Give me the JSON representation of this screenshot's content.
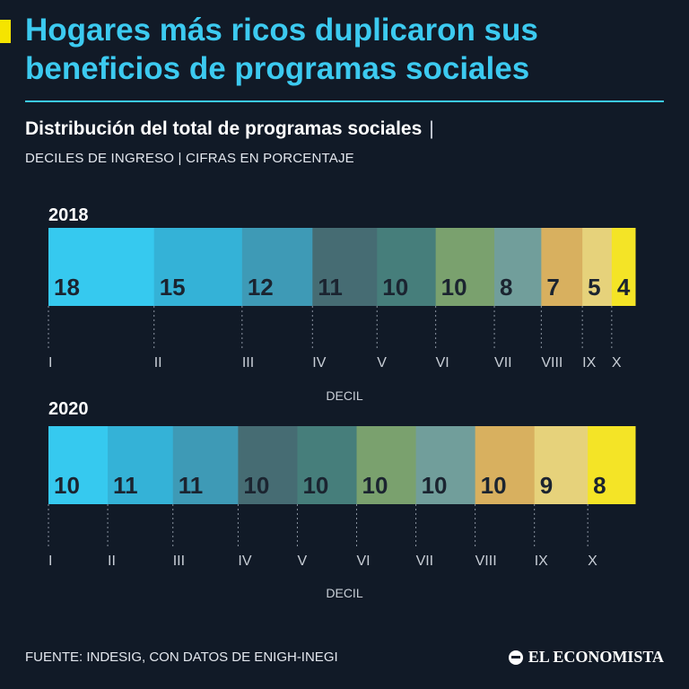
{
  "header": {
    "title": "Hogares más ricos duplicaron sus beneficios de programas sociales",
    "subtitle": "Distribución del total de programas sociales",
    "subtitle_separator": "|",
    "subtitle2": "DECILES DE INGRESO | CIFRAS EN PORCENTAJE"
  },
  "footer": {
    "source": "FUENTE: INDESIG, CON DATOS DE ENIGH-INEGI",
    "brand": "EL ECONOMISTA"
  },
  "colors": {
    "background": "#111a27",
    "accent": "#f5e400",
    "title": "#3ccaf0",
    "deciles": [
      "#36c9ef",
      "#34b2d7",
      "#3e9ab6",
      "#466c73",
      "#467e7b",
      "#7aa16e",
      "#719e9b",
      "#d8b05f",
      "#e6d27b",
      "#f4e426"
    ]
  },
  "chart_data": [
    {
      "type": "bar",
      "orientation": "horizontal-stacked",
      "title": "2018",
      "xlabel": "DECIL",
      "unit": "%",
      "categories": [
        "I",
        "II",
        "III",
        "IV",
        "V",
        "VI",
        "VII",
        "VIII",
        "IX",
        "X"
      ],
      "values": [
        18,
        15,
        12,
        11,
        10,
        10,
        8,
        7,
        5,
        4
      ]
    },
    {
      "type": "bar",
      "orientation": "horizontal-stacked",
      "title": "2020",
      "xlabel": "DECIL",
      "unit": "%",
      "categories": [
        "I",
        "II",
        "III",
        "IV",
        "V",
        "VI",
        "VII",
        "VIII",
        "IX",
        "X"
      ],
      "values": [
        10,
        11,
        11,
        10,
        10,
        10,
        10,
        10,
        9,
        8
      ]
    }
  ]
}
